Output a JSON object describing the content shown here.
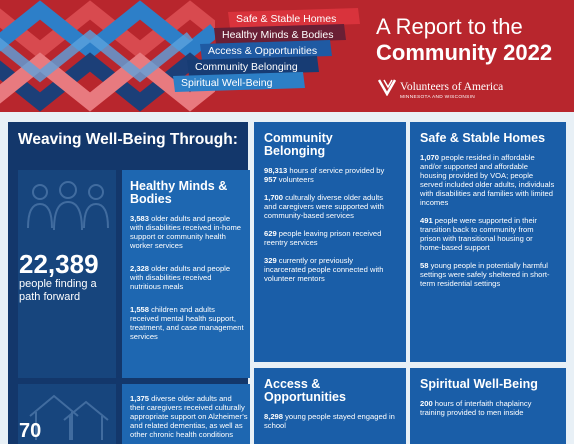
{
  "banner": {
    "ribbons": [
      "Safe & Stable Homes",
      "Healthy Minds & Bodies",
      "Access & Opportunities",
      "Community Belonging",
      "Spiritual Well-Being"
    ],
    "title_line1": "A Report to the",
    "title_line2": "Community 2022",
    "logo_name": "Volunteers of America",
    "logo_sub": "MINNESOTA AND WISCONSIN",
    "colors": {
      "banner_red": "#b8262d",
      "navy": "#13376b",
      "blue": "#1a5ea8"
    }
  },
  "left": {
    "heading": "Weaving Well-Being Through:",
    "big_number": "22,389",
    "big_caption": "people finding a path forward",
    "second_number": "70",
    "people_icon": "people-group-icon",
    "house_icon": "house-icon"
  },
  "healthy_minds": {
    "title": "Healthy Minds & Bodies",
    "stats": [
      {
        "num": "3,583",
        "text": " older adults and people with disabilities received in-home support or community health worker services"
      },
      {
        "num": "2,328",
        "text": " older adults and people with disabilities received nutritious meals"
      },
      {
        "num": "1,558",
        "text": " children and adults received mental health support, treatment, and case management services"
      },
      {
        "num": "1,375",
        "text": " diverse older adults and their caregivers received culturally appropriate support on Alzheimer’s and related dementias, as well as other chronic health conditions"
      }
    ]
  },
  "community_belonging": {
    "title": "Community Belonging",
    "stats": [
      {
        "num": "98,313",
        "text": " hours of service provided by ",
        "num2": "957",
        "text2": " volunteers"
      },
      {
        "num": "1,700",
        "text": " culturally diverse older adults and caregivers were supported with community-based services"
      },
      {
        "num": "629",
        "text": " people leaving prison received reentry services"
      },
      {
        "num": "329",
        "text": " currently or previously incarcerated people connected with volunteer mentors"
      }
    ]
  },
  "safe_homes": {
    "title": "Safe & Stable Homes",
    "stats": [
      {
        "num": "1,070",
        "text": " people resided in affordable and/or supported and affordable housing provided by VOA; people served included older adults, individuals with disabilities and families with limited incomes"
      },
      {
        "num": "491",
        "text": " people were supported in their transition back to community from prison with transitional housing or home-based support"
      },
      {
        "num": "58",
        "text": " young people in potentially harmful settings were safely sheltered in short-term residential settings"
      }
    ]
  },
  "access": {
    "title": "Access & Opportunities",
    "stats": [
      {
        "num": "8,298",
        "text": " young people stayed engaged in school"
      }
    ]
  },
  "spiritual": {
    "title": "Spiritual Well-Being",
    "stats": [
      {
        "num": "200",
        "text": " hours of interfaith chaplaincy training provided to men inside"
      }
    ]
  }
}
